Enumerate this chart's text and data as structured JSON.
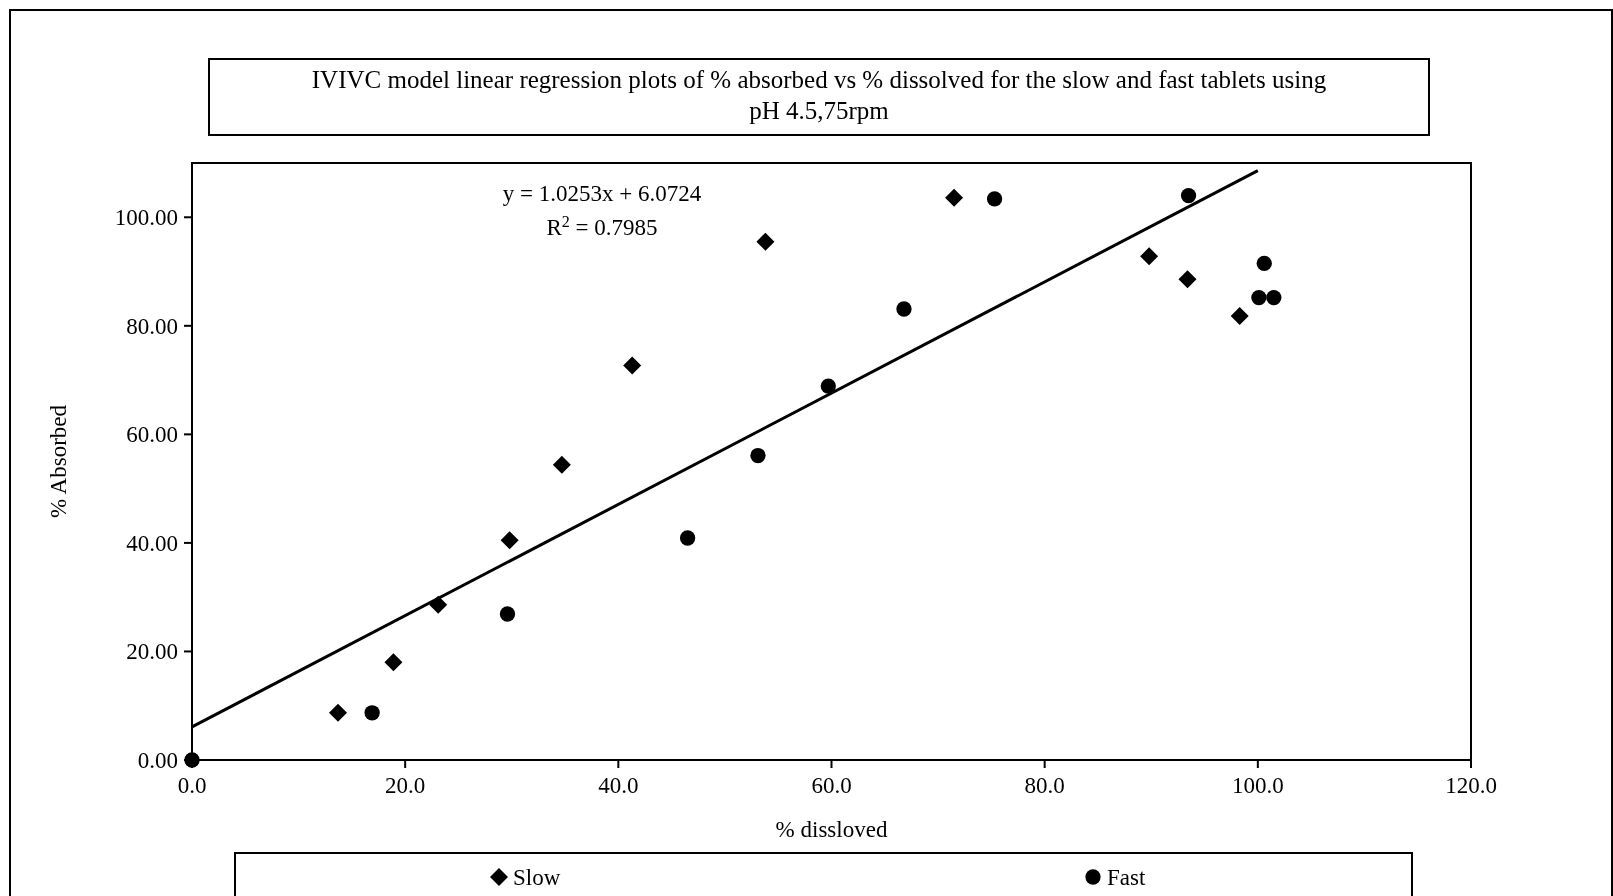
{
  "chart_data": {
    "type": "scatter",
    "title": "IVIVC model linear regression plots of % absorbed vs % dissolved for the slow and fast tablets using pH 4.5,75rpm",
    "xlabel": "% dissloved",
    "ylabel": "% Absorbed",
    "xlim": [
      0,
      120
    ],
    "ylim": [
      0,
      110
    ],
    "xticks": [
      {
        "value": 0,
        "label": "0.0"
      },
      {
        "value": 20,
        "label": "20.0"
      },
      {
        "value": 40,
        "label": "40.0"
      },
      {
        "value": 60,
        "label": "60.0"
      },
      {
        "value": 80,
        "label": "80.0"
      },
      {
        "value": 100,
        "label": "100.0"
      },
      {
        "value": 120,
        "label": "120.0"
      }
    ],
    "yticks": [
      {
        "value": 0,
        "label": "0.00"
      },
      {
        "value": 20,
        "label": "20.00"
      },
      {
        "value": 40,
        "label": "40.00"
      },
      {
        "value": 60,
        "label": "60.00"
      },
      {
        "value": 80,
        "label": "80.00"
      },
      {
        "value": 100,
        "label": "100.00"
      }
    ],
    "grid": false,
    "legend": "bottom",
    "annotations": [
      "y = 1.0253x + 6.0724",
      "R$^{2}$ = 0.7985"
    ],
    "series": [
      {
        "name": "Slow",
        "marker": "diamond",
        "color": "#000000",
        "x": [
          13.7,
          18.9,
          23.1,
          29.8,
          34.7,
          41.3,
          53.8,
          71.5,
          89.8,
          93.4,
          98.3
        ],
        "values": [
          8.7,
          18.0,
          28.6,
          40.5,
          54.4,
          72.7,
          95.5,
          103.6,
          92.8,
          88.6,
          81.8
        ]
      },
      {
        "name": "Fast",
        "marker": "circle",
        "color": "#000000",
        "x": [
          0,
          16.9,
          29.6,
          46.5,
          53.1,
          59.7,
          66.8,
          75.3,
          93.5,
          100.6,
          100.1,
          101.5
        ],
        "values": [
          0,
          8.7,
          26.9,
          40.9,
          56.1,
          68.9,
          83.1,
          103.4,
          104.0,
          91.5,
          85.2,
          85.2
        ]
      },
      {
        "type": "line",
        "marker": "none",
        "line_style": "solid",
        "color": "#000000",
        "x": [
          0,
          100
        ],
        "values": [
          6.1,
          108.6
        ]
      }
    ]
  }
}
